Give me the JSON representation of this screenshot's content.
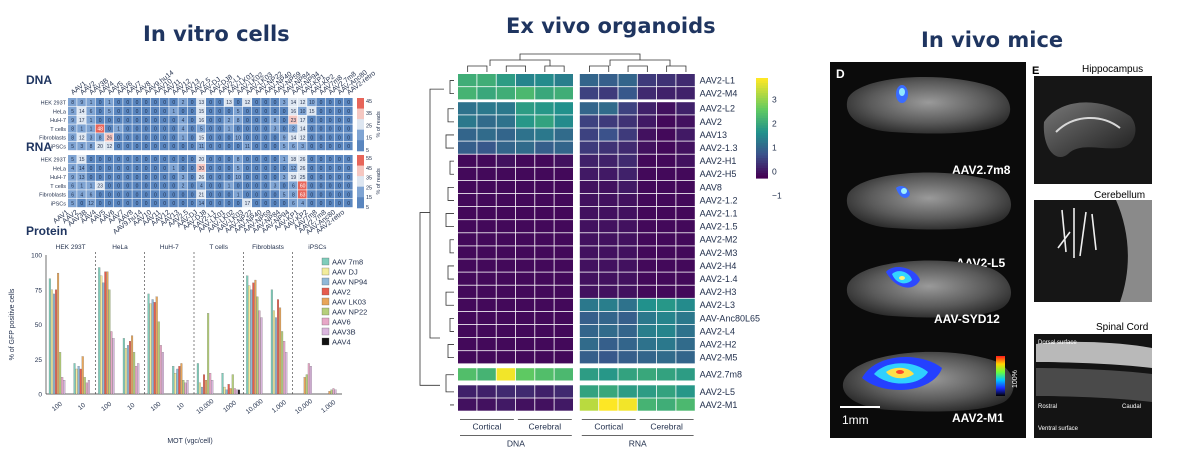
{
  "panels": {
    "vitro": {
      "title": "In vitro cells"
    },
    "exvivo": {
      "title": "Ex vivo organoids"
    },
    "invivo": {
      "title": "In vivo mice"
    }
  },
  "vitro": {
    "dna_label": "DNA",
    "rna_label": "RNA",
    "protein_label": "Protein",
    "capsids": [
      "AAV1",
      "AAV2",
      "AAV3B",
      "AAV4",
      "AAV5",
      "AAV6",
      "AAV7",
      "AAV8",
      "AAV9.hu14",
      "AAV10",
      "AAV11",
      "AAV12",
      "AAV13",
      "AAV2.5",
      "AAV-DJ",
      "AAV-DJ8",
      "AAV2-L1",
      "AAV-LK01",
      "AAV-LK02",
      "AAV-LK03",
      "AAV-NP22",
      "AAV-NP40",
      "AAV-NP59",
      "AAV-NP84",
      "AAV-NP94",
      "AAV-KP1",
      "AAV-KP2",
      "AAV7m8",
      "AAV2.7m8",
      "AAV-Anc80",
      "AAV2-retro"
    ],
    "cells": [
      "HEK 293T",
      "HeLa",
      "HuH-7",
      "T cells",
      "Fibroblasts",
      "iPSCs"
    ],
    "dna_matrix": [
      [
        8,
        9,
        1,
        0,
        1,
        0,
        0,
        0,
        0,
        0,
        0,
        0,
        2,
        0,
        13,
        0,
        0,
        13,
        0,
        12,
        0,
        0,
        0,
        3,
        14,
        12,
        10,
        0,
        0,
        0,
        0
      ],
      [
        5,
        14,
        6,
        0,
        5,
        0,
        0,
        0,
        0,
        0,
        0,
        1,
        0,
        0,
        15,
        0,
        0,
        0,
        5,
        0,
        0,
        0,
        0,
        0,
        16,
        10,
        15,
        0,
        0,
        0,
        0
      ],
      [
        9,
        17,
        1,
        0,
        0,
        0,
        0,
        0,
        0,
        0,
        0,
        0,
        4,
        0,
        16,
        0,
        0,
        2,
        8,
        0,
        0,
        0,
        8,
        0,
        23,
        17,
        0,
        0,
        0,
        0,
        0
      ],
      [
        8,
        1,
        1,
        48,
        0,
        1,
        0,
        0,
        0,
        0,
        0,
        0,
        4,
        0,
        5,
        0,
        0,
        1,
        0,
        0,
        0,
        0,
        3,
        0,
        2,
        14,
        0,
        0,
        0,
        0,
        0
      ],
      [
        8,
        12,
        3,
        8,
        26,
        0,
        0,
        0,
        0,
        0,
        0,
        0,
        1,
        0,
        15,
        0,
        0,
        0,
        10,
        0,
        0,
        0,
        0,
        9,
        14,
        12,
        0,
        0,
        0,
        0,
        0
      ],
      [
        5,
        3,
        8,
        20,
        12,
        0,
        0,
        0,
        0,
        0,
        0,
        0,
        0,
        0,
        11,
        0,
        0,
        0,
        0,
        11,
        0,
        0,
        0,
        5,
        6,
        3,
        0,
        0,
        0,
        0,
        0
      ]
    ],
    "rna_matrix": [
      [
        5,
        15,
        0,
        0,
        0,
        0,
        0,
        0,
        0,
        0,
        0,
        0,
        0,
        0,
        20,
        0,
        0,
        0,
        8,
        0,
        0,
        0,
        0,
        1,
        18,
        26,
        0,
        0,
        0,
        0,
        0
      ],
      [
        4,
        14,
        0,
        0,
        0,
        0,
        0,
        0,
        0,
        0,
        0,
        1,
        0,
        0,
        30,
        0,
        0,
        0,
        5,
        0,
        0,
        0,
        0,
        0,
        12,
        26,
        0,
        0,
        0,
        0,
        0
      ],
      [
        9,
        13,
        0,
        0,
        0,
        0,
        0,
        0,
        0,
        0,
        0,
        0,
        3,
        0,
        26,
        0,
        0,
        0,
        10,
        0,
        0,
        0,
        0,
        3,
        19,
        25,
        0,
        0,
        0,
        0,
        0
      ],
      [
        6,
        1,
        1,
        23,
        0,
        0,
        0,
        0,
        0,
        0,
        0,
        0,
        2,
        0,
        4,
        0,
        0,
        1,
        0,
        0,
        0,
        0,
        3,
        0,
        6,
        60,
        0,
        0,
        0,
        0,
        0
      ],
      [
        6,
        4,
        6,
        0,
        0,
        0,
        0,
        0,
        0,
        0,
        0,
        0,
        0,
        0,
        21,
        0,
        0,
        0,
        1,
        0,
        0,
        0,
        0,
        5,
        8,
        63,
        0,
        0,
        0,
        0,
        0
      ],
      [
        5,
        0,
        12,
        0,
        0,
        0,
        0,
        0,
        0,
        0,
        0,
        0,
        0,
        0,
        14,
        0,
        0,
        0,
        0,
        17,
        0,
        0,
        0,
        0,
        6,
        4,
        0,
        0,
        0,
        0,
        0
      ]
    ],
    "dna_scale": {
      "ticks": [
        "45",
        "35",
        "25",
        "15",
        "5"
      ],
      "label": "% of reads"
    },
    "rna_scale": {
      "ticks": [
        "55",
        "45",
        "35",
        "25",
        "15",
        "5"
      ],
      "label": "% of reads"
    }
  },
  "chart_data": [
    {
      "type": "bar",
      "title": "Protein",
      "ylabel": "% of GFP positive cells",
      "xlabel": "MOT (vgc/cell)",
      "ylim": [
        0,
        100
      ],
      "yticks": [
        "100",
        "75",
        "50",
        "25",
        "0"
      ],
      "groups": [
        "HEK 293T",
        "HeLa",
        "HuH-7",
        "T cells",
        "Fibroblasts",
        "iPSCs"
      ],
      "group_mots": [
        [
          "100",
          "10"
        ],
        [
          "100",
          "10"
        ],
        [
          "100",
          "10"
        ],
        [
          "10,000",
          "1000"
        ],
        [
          "10,000",
          "1,000"
        ],
        [
          "10,000",
          "1,000"
        ]
      ],
      "series": [
        {
          "name": "AAV 7m8",
          "color": "#7fcdbb",
          "values": [
            83,
            22,
            91,
            40,
            72,
            20,
            22,
            15,
            85,
            75,
            0,
            0
          ]
        },
        {
          "name": "AAV DJ",
          "color": "#f2ec9b",
          "values": [
            75,
            18,
            85,
            33,
            65,
            15,
            8,
            5,
            78,
            60,
            0,
            0
          ]
        },
        {
          "name": "AAV NP94",
          "color": "#8fb8d8",
          "values": [
            72,
            20,
            80,
            35,
            68,
            18,
            5,
            3,
            75,
            55,
            0,
            0
          ]
        },
        {
          "name": "AAV2",
          "color": "#e65c4d",
          "values": [
            75,
            18,
            88,
            38,
            66,
            20,
            14,
            7,
            80,
            68,
            0,
            0
          ]
        },
        {
          "name": "AAV LK03",
          "color": "#e8a55a",
          "values": [
            87,
            27,
            88,
            42,
            70,
            22,
            10,
            4,
            82,
            62,
            12,
            2
          ]
        },
        {
          "name": "AAV NP22",
          "color": "#b5cf7a",
          "values": [
            30,
            12,
            75,
            30,
            52,
            10,
            58,
            14,
            70,
            45,
            14,
            3
          ]
        },
        {
          "name": "AAV6",
          "color": "#e7a7c7",
          "values": [
            12,
            8,
            45,
            20,
            35,
            8,
            15,
            4,
            60,
            38,
            22,
            4
          ]
        },
        {
          "name": "AAV3B",
          "color": "#d9b5dd",
          "values": [
            10,
            10,
            40,
            22,
            30,
            10,
            10,
            3,
            55,
            30,
            20,
            3
          ]
        },
        {
          "name": "AAV4",
          "color": "#111111",
          "values": [
            0,
            0,
            0,
            0,
            0,
            0,
            0,
            3,
            0,
            0,
            0,
            0
          ]
        }
      ]
    },
    {
      "type": "heatmap",
      "rows": [
        "AAV2-L1",
        "AAV2-M4",
        "AAV2-L2",
        "AAV2",
        "AAV13",
        "AAV2-1.3",
        "AAV2-H1",
        "AAV2-H5",
        "AAV8",
        "AAV2-1.2",
        "AAV2-1.1",
        "AAV2-1.5",
        "AAV2-M2",
        "AAV2-M3",
        "AAV2-H4",
        "AAV2-1.4",
        "AAV2-H3",
        "AAV2-L3",
        "AAV-Anc80L65",
        "AAV2-L4",
        "AAV2-H2",
        "AAV2-M5",
        "AAV2.7m8",
        "AAV2-L5",
        "AAV2-M1"
      ],
      "column_groups": [
        "Cortical",
        "Cerebral",
        "Cortical",
        "Cerebral"
      ],
      "column_supergroups": [
        "DNA",
        "RNA"
      ],
      "colorbar_ticks": [
        "3",
        "2",
        "1",
        "0",
        "−1"
      ],
      "values": [
        [
          1.5,
          1.5,
          1.2,
          0.8,
          0.9,
          0.7,
          0.3,
          0.2,
          0.3,
          -0.3,
          -0.4,
          -0.5
        ],
        [
          1.6,
          1.4,
          1.5,
          1.7,
          1.4,
          1.5,
          -0.2,
          -0.3,
          0.1,
          -0.5,
          -0.6,
          -0.6
        ],
        [
          0.5,
          0.6,
          0.6,
          1.2,
          1.1,
          1.0,
          0.3,
          0.4,
          -0.2,
          -0.6,
          -0.8,
          -0.6
        ],
        [
          0.6,
          0.4,
          0.5,
          1.1,
          1.3,
          0.9,
          -0.2,
          -0.3,
          -0.4,
          -0.7,
          -0.9,
          -0.8
        ],
        [
          0.3,
          0.4,
          0.3,
          0.5,
          0.6,
          0.4,
          -0.2,
          0.0,
          -0.3,
          -0.8,
          -0.9,
          -0.7
        ],
        [
          0.2,
          0.1,
          0.3,
          0.4,
          0.2,
          0.3,
          -0.3,
          -0.4,
          -0.5,
          -0.8,
          -0.9,
          -0.8
        ],
        [
          -0.9,
          -0.9,
          -0.8,
          -0.9,
          -0.9,
          -0.8,
          -0.6,
          -0.6,
          -0.5,
          -0.9,
          -0.9,
          -0.8
        ],
        [
          -0.9,
          -0.9,
          -0.9,
          -0.9,
          -0.9,
          -0.9,
          -0.7,
          -0.7,
          -0.6,
          -0.9,
          -0.9,
          -0.9
        ],
        [
          -0.9,
          -0.9,
          -0.9,
          -0.9,
          -0.9,
          -0.9,
          -0.8,
          -0.8,
          -0.7,
          -0.9,
          -0.9,
          -0.9
        ],
        [
          -0.9,
          -0.9,
          -0.9,
          -0.9,
          -0.9,
          -0.9,
          -0.8,
          -0.8,
          -0.8,
          -0.9,
          -0.9,
          -0.9
        ],
        [
          -0.9,
          -0.9,
          -0.9,
          -0.9,
          -0.9,
          -0.9,
          -0.8,
          -0.8,
          -0.8,
          -0.9,
          -0.9,
          -0.9
        ],
        [
          -0.9,
          -0.9,
          -0.9,
          -0.9,
          -0.9,
          -0.9,
          -0.8,
          -0.8,
          -0.8,
          -0.9,
          -0.9,
          -0.9
        ],
        [
          -0.9,
          -0.9,
          -0.9,
          -0.9,
          -0.9,
          -0.9,
          -0.8,
          -0.8,
          -0.8,
          -0.9,
          -0.9,
          -0.9
        ],
        [
          -0.9,
          -0.9,
          -0.9,
          -0.9,
          -0.9,
          -0.9,
          -0.8,
          -0.8,
          -0.8,
          -0.9,
          -0.9,
          -0.9
        ],
        [
          -0.9,
          -0.9,
          -0.9,
          -0.9,
          -0.9,
          -0.9,
          -0.8,
          -0.8,
          -0.8,
          -0.9,
          -0.9,
          -0.9
        ],
        [
          -0.9,
          -0.9,
          -0.9,
          -0.9,
          -0.9,
          -0.9,
          -0.8,
          -0.8,
          -0.8,
          -0.9,
          -0.9,
          -0.9
        ],
        [
          -0.9,
          -0.9,
          -0.9,
          -0.9,
          -0.9,
          -0.9,
          -0.8,
          -0.8,
          -0.8,
          -0.9,
          -0.9,
          -0.9
        ],
        [
          -0.9,
          -0.9,
          -0.9,
          -0.9,
          -0.9,
          -0.9,
          0.6,
          0.7,
          0.5,
          1.0,
          1.1,
          0.9
        ],
        [
          -0.9,
          -0.9,
          -0.9,
          -0.9,
          -0.9,
          -0.9,
          0.2,
          0.3,
          0.2,
          0.6,
          0.8,
          0.6
        ],
        [
          -0.9,
          -0.9,
          -0.9,
          -0.9,
          -0.9,
          -0.9,
          0.3,
          0.4,
          0.3,
          0.7,
          0.8,
          0.5
        ],
        [
          -0.9,
          -0.9,
          -0.9,
          -0.9,
          -0.9,
          -0.9,
          0.4,
          0.2,
          0.3,
          0.5,
          0.6,
          0.4
        ],
        [
          -0.9,
          -0.9,
          -0.9,
          -0.9,
          -0.9,
          -0.9,
          0.2,
          0.1,
          0.2,
          0.3,
          0.4,
          0.3
        ],
        [
          1.8,
          1.6,
          3.3,
          2.0,
          1.8,
          1.7,
          1.2,
          1.1,
          1.3,
          1.4,
          1.3,
          1.2
        ],
        [
          -0.6,
          -0.6,
          -0.5,
          -0.5,
          -0.6,
          -0.5,
          1.3,
          1.4,
          1.2,
          1.2,
          1.3,
          1.1
        ],
        [
          -0.8,
          -0.8,
          -0.7,
          -0.8,
          -0.8,
          -0.7,
          2.8,
          3.4,
          3.3,
          1.6,
          1.5,
          1.7
        ]
      ]
    }
  ],
  "invivo": {
    "panel_d": "D",
    "panel_e": "E",
    "sections": [
      "AAV2.7m8",
      "AAV2-L5",
      "AAV-SYD12",
      "AAV2-M1"
    ],
    "scale_bar": "1mm",
    "intensity_label": "100%",
    "hippocampus": "Hippocampus",
    "cerebellum": "Cerebellum",
    "spinal_cord": "Spinal Cord",
    "dorsal": "Dorsal surface",
    "rostral": "Rostral",
    "caudal": "Caudal",
    "ventral": "Ventral surface"
  }
}
